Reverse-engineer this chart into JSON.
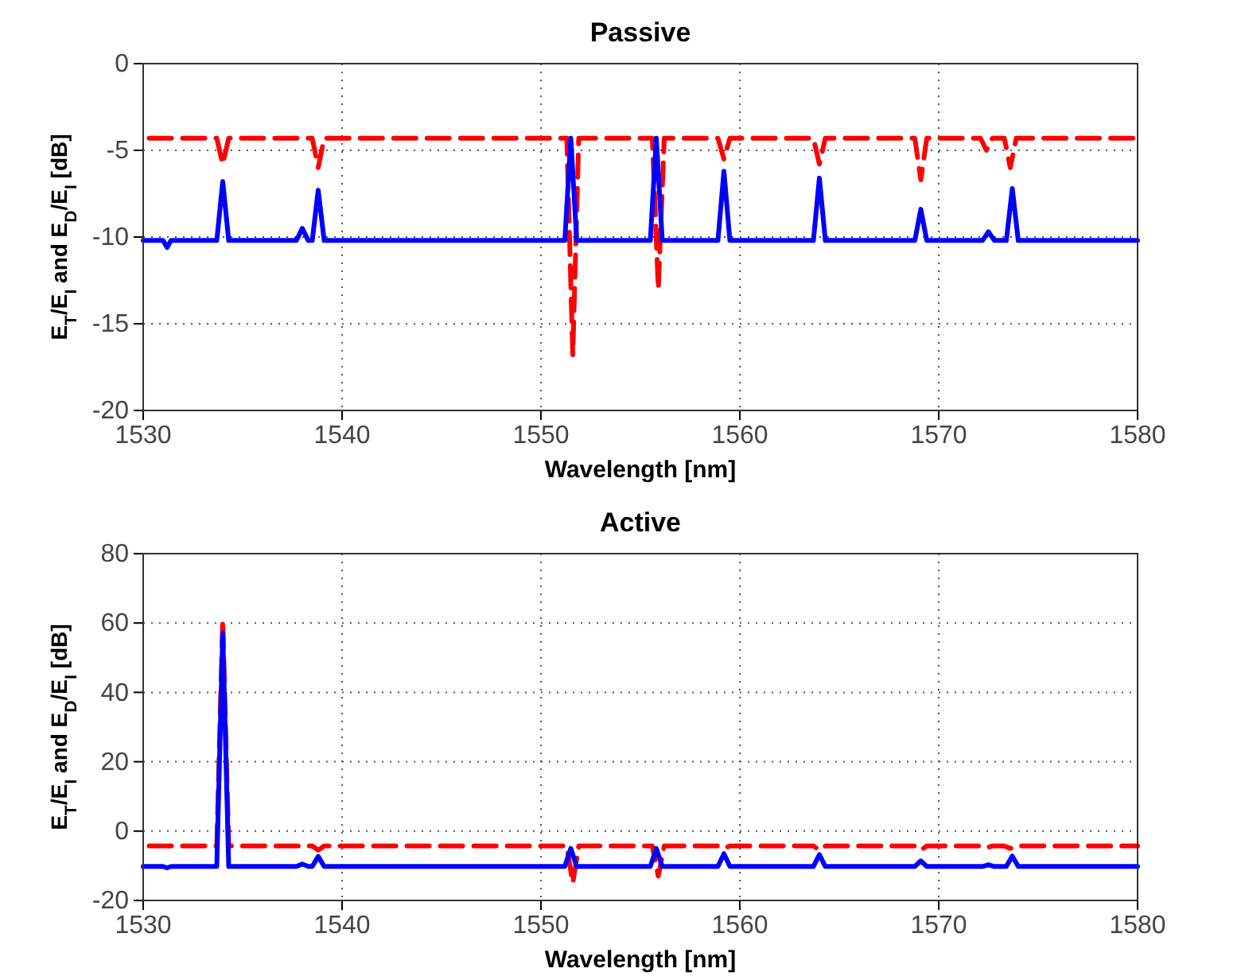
{
  "chart_data": [
    {
      "type": "line",
      "title": "Passive",
      "xlabel": "Wavelength [nm]",
      "ylabel": "E$_{T}$/E$_{I}$ and E$_{D}$/E$_{I}$ [dB]",
      "xlim": [
        1530,
        1580
      ],
      "xticks": [
        1530,
        1540,
        1550,
        1560,
        1570,
        1580
      ],
      "ylim": [
        -20,
        0
      ],
      "yticks": [
        -20,
        -15,
        -10,
        -5,
        0
      ],
      "grid": true,
      "series": [
        {
          "color": "#0000ff",
          "line_style": "solid",
          "x": [
            1530,
            1531,
            1531.2,
            1531.4,
            1533.7,
            1534,
            1534.3,
            1537.7,
            1538,
            1538.3,
            1538.5,
            1538.8,
            1539.1,
            1551.2,
            1551.5,
            1551.8,
            1555.5,
            1555.8,
            1556.1,
            1558.9,
            1559.2,
            1559.5,
            1563.7,
            1564,
            1564.3,
            1568.8,
            1569.1,
            1569.4,
            1572.2,
            1572.5,
            1572.8,
            1573.4,
            1573.7,
            1574,
            1580
          ],
          "values": [
            -10.2,
            -10.2,
            -10.6,
            -10.2,
            -10.2,
            -6.8,
            -10.2,
            -10.2,
            -9.5,
            -10.2,
            -10.2,
            -7.3,
            -10.2,
            -10.2,
            -4.3,
            -10.2,
            -10.2,
            -4.3,
            -10.2,
            -10.2,
            -6.2,
            -10.2,
            -10.2,
            -6.6,
            -10.2,
            -10.2,
            -8.4,
            -10.2,
            -10.2,
            -9.7,
            -10.2,
            -10.2,
            -7.2,
            -10.2,
            -10.2
          ]
        },
        {
          "color": "#ff0000",
          "line_style": "dashed",
          "x": [
            1530.3,
            1533.7,
            1534,
            1534.3,
            1538.5,
            1538.8,
            1539.1,
            1551.3,
            1551.6,
            1551.9,
            1555.6,
            1555.9,
            1556.2,
            1558.9,
            1559.2,
            1559.5,
            1563.7,
            1564,
            1564.3,
            1568.8,
            1569.1,
            1569.4,
            1572.1,
            1572.4,
            1572.7,
            1573.3,
            1573.6,
            1573.9,
            1580
          ],
          "values": [
            -4.3,
            -4.3,
            -5.8,
            -4.3,
            -4.3,
            -6,
            -4.3,
            -4.3,
            -16.8,
            -4.3,
            -4.3,
            -13,
            -4.3,
            -4.3,
            -5.5,
            -4.3,
            -4.3,
            -5.8,
            -4.3,
            -4.3,
            -6.7,
            -4.3,
            -4.3,
            -5,
            -4.3,
            -4.3,
            -6,
            -4.3,
            -4.3
          ]
        }
      ]
    },
    {
      "type": "line",
      "title": "Active",
      "xlabel": "Wavelength [nm]",
      "ylabel": "E$_{T}$/E$_{I}$ and E$_{D}$/E$_{I}$ [dB]",
      "xlim": [
        1530,
        1580
      ],
      "xticks": [
        1530,
        1540,
        1550,
        1560,
        1570,
        1580
      ],
      "ylim": [
        -20,
        80
      ],
      "yticks": [
        -20,
        0,
        20,
        40,
        60,
        80
      ],
      "grid": true,
      "series": [
        {
          "color": "#0000ff",
          "line_style": "solid",
          "x": [
            1530,
            1531,
            1531.2,
            1531.4,
            1533.7,
            1534,
            1534.3,
            1537.7,
            1538,
            1538.3,
            1538.5,
            1538.8,
            1539.1,
            1551.2,
            1551.5,
            1551.8,
            1555.5,
            1555.8,
            1556.1,
            1558.9,
            1559.2,
            1559.5,
            1563.7,
            1564,
            1564.3,
            1568.8,
            1569.1,
            1569.4,
            1572.2,
            1572.5,
            1572.8,
            1573.4,
            1573.7,
            1574,
            1580
          ],
          "values": [
            -10.2,
            -10.2,
            -10.6,
            -10.2,
            -10.2,
            57,
            -10.2,
            -10.2,
            -9.5,
            -10.2,
            -10.2,
            -7.3,
            -10.2,
            -10.2,
            -5,
            -10.2,
            -10.2,
            -5,
            -10.2,
            -10.2,
            -6.5,
            -10.2,
            -10.2,
            -6.8,
            -10.2,
            -10.2,
            -8.6,
            -10.2,
            -10.2,
            -9.7,
            -10.2,
            -10.2,
            -7.2,
            -10.2,
            -10.2
          ]
        },
        {
          "color": "#ff0000",
          "line_style": "dashed",
          "x": [
            1530.3,
            1533.7,
            1534,
            1534.3,
            1538.5,
            1538.8,
            1539.1,
            1551.3,
            1551.6,
            1551.9,
            1555.6,
            1555.9,
            1556.2,
            1558.9,
            1559.2,
            1559.5,
            1563.7,
            1564,
            1564.3,
            1568.8,
            1569.1,
            1569.4,
            1572.1,
            1572.4,
            1572.7,
            1573.3,
            1573.6,
            1573.9,
            1580
          ],
          "values": [
            -4.3,
            -4.3,
            61,
            -4.3,
            -4.3,
            -5.5,
            -4.3,
            -4.3,
            -15,
            -4.3,
            -4.3,
            -13,
            -4.3,
            -4.3,
            -5,
            -4.3,
            -4.3,
            -5.5,
            -4.3,
            -4.3,
            -5.5,
            -4.3,
            -4.3,
            -4.8,
            -4.3,
            -4.3,
            -5,
            -4.3,
            -4.3
          ]
        }
      ]
    }
  ]
}
